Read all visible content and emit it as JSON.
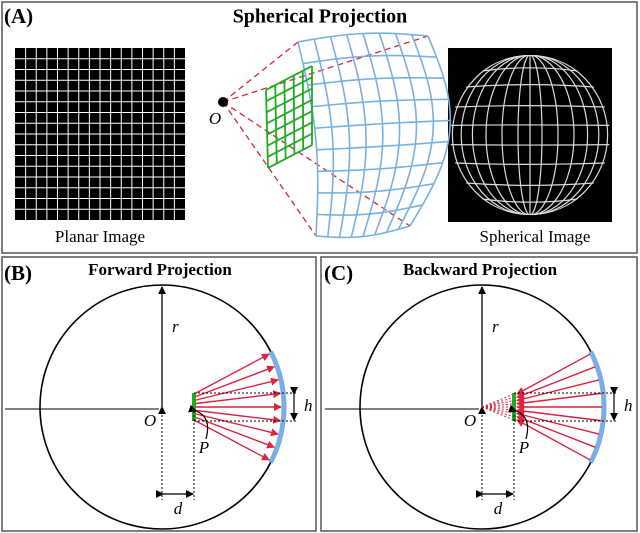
{
  "panel_a": {
    "label": "(A)",
    "title": "Spherical Projection",
    "planar_caption": "Planar Image",
    "spherical_caption": "Spherical Image",
    "origin_label": "O"
  },
  "panel_b": {
    "label": "(B)",
    "title": "Forward Projection",
    "radius_label": "r",
    "origin_label": "O",
    "height_label": "h",
    "distance_label": "d",
    "point_label": "P"
  },
  "panel_c": {
    "label": "(C)",
    "title": "Backward Projection",
    "radius_label": "r",
    "origin_label": "O",
    "height_label": "h",
    "distance_label": "d",
    "point_label": "P"
  }
}
